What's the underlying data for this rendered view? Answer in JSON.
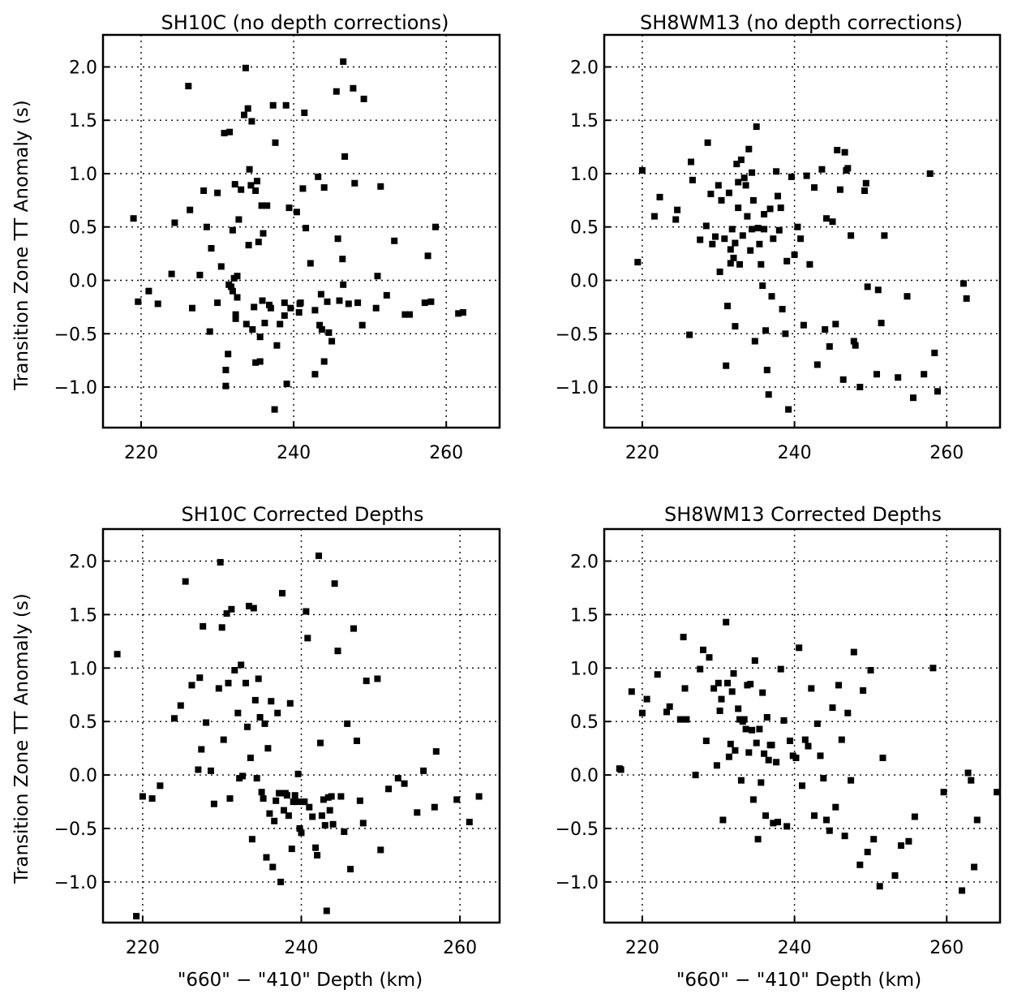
{
  "figure": {
    "ylabel": "Transition Zone TT Anomaly (s)",
    "xlabel": "\"660\" − \"410\" Depth (km)"
  },
  "chart_data": [
    {
      "type": "scatter",
      "title": "SH10C (no depth corrections)",
      "xlabel": "",
      "ylabel": "Transition Zone TT Anomaly (s)",
      "xlim": [
        215,
        267
      ],
      "ylim": [
        -1.38,
        2.3
      ],
      "xticks": [
        220,
        240,
        260
      ],
      "yticks": [
        -1.0,
        -0.5,
        0.0,
        0.5,
        1.0,
        1.5,
        2.0
      ],
      "xtick_labels": [
        "220",
        "240",
        "260"
      ],
      "ytick_labels": [
        "−1.0",
        "−0.5",
        "0.0",
        "0.5",
        "1.0",
        "1.5",
        "2.0"
      ],
      "grid": true,
      "x": [
        219.0,
        219.6,
        221.0,
        222.2,
        224.0,
        224.4,
        226.2,
        226.4,
        226.7,
        227.7,
        228.2,
        228.6,
        229.0,
        229.2,
        230.0,
        230.0,
        230.5,
        230.9,
        231.1,
        231.1,
        231.4,
        231.5,
        231.6,
        231.8,
        232.0,
        232.0,
        232.2,
        232.3,
        232.4,
        232.4,
        232.6,
        232.6,
        232.8,
        233.1,
        233.5,
        233.7,
        233.8,
        234.0,
        234.1,
        234.2,
        234.4,
        234.5,
        234.6,
        234.8,
        235.0,
        235.0,
        235.2,
        235.4,
        235.6,
        235.6,
        235.8,
        235.9,
        236.0,
        236.2,
        236.5,
        236.8,
        237.0,
        237.3,
        237.5,
        237.6,
        237.8,
        238.2,
        238.8,
        238.8,
        239.0,
        239.1,
        239.4,
        239.6,
        240.4,
        240.7,
        240.8,
        240.9,
        241.2,
        241.4,
        241.6,
        242.2,
        242.8,
        242.8,
        243.2,
        243.4,
        243.6,
        243.7,
        244.0,
        244.0,
        244.4,
        244.6,
        245.0,
        245.6,
        245.8,
        246.0,
        246.4,
        246.5,
        246.5,
        246.7,
        247.2,
        247.8,
        248.0,
        248.4,
        249.0,
        249.2,
        250.8,
        251.0,
        251.4,
        252.2,
        253.2,
        254.6,
        255.2,
        257.2,
        257.6,
        258.0,
        258.6,
        261.6,
        262.2
      ],
      "y": [
        0.58,
        -0.2,
        -0.1,
        -0.22,
        0.06,
        0.54,
        1.82,
        0.66,
        -0.26,
        0.05,
        0.84,
        0.5,
        -0.48,
        0.3,
        -0.21,
        0.82,
        0.13,
        1.38,
        -0.99,
        -0.84,
        -0.69,
        -0.04,
        1.39,
        -0.06,
        -0.1,
        0.47,
        0.02,
        0.9,
        -0.32,
        -0.36,
        0.04,
        -0.16,
        0.57,
        0.85,
        1.55,
        1.99,
        -0.41,
        1.61,
        0.33,
        1.04,
        0.89,
        1.49,
        -0.46,
        -0.25,
        0.84,
        -0.77,
        0.93,
        0.36,
        -0.53,
        -0.76,
        0.7,
        -0.19,
        0.44,
        -0.4,
        0.7,
        -0.23,
        -0.26,
        1.64,
        -1.21,
        1.29,
        -0.61,
        -0.41,
        -0.21,
        -0.33,
        1.64,
        -0.97,
        0.68,
        -0.26,
        0.64,
        -0.3,
        -0.22,
        -0.21,
        0.86,
        1.57,
        0.49,
        0.16,
        -0.28,
        -0.88,
        0.97,
        -0.42,
        -0.13,
        -0.46,
        0.87,
        -0.76,
        -0.2,
        -0.49,
        -0.57,
        1.77,
        0.39,
        -0.19,
        0.2,
        -0.04,
        2.05,
        1.16,
        -0.22,
        1.8,
        0.91,
        -0.21,
        -0.42,
        1.7,
        -0.26,
        0.04,
        0.88,
        -0.14,
        0.37,
        -0.32,
        -0.32,
        -0.21,
        0.23,
        -0.2,
        0.5,
        -0.31,
        -0.3
      ]
    },
    {
      "type": "scatter",
      "title": "SH8WM13 (no depth corrections)",
      "xlabel": "",
      "ylabel": "",
      "xlim": [
        215,
        267
      ],
      "ylim": [
        -1.38,
        2.3
      ],
      "xticks": [
        220,
        240,
        260
      ],
      "yticks": [
        -1.0,
        -0.5,
        0.0,
        0.5,
        1.0,
        1.5,
        2.0
      ],
      "xtick_labels": [
        "220",
        "240",
        "260"
      ],
      "ytick_labels": [
        "−1.0",
        "−0.5",
        "0.0",
        "0.5",
        "1.0",
        "1.5",
        "2.0"
      ],
      "grid": true,
      "x": [
        219.4,
        220.0,
        221.6,
        222.3,
        224.4,
        224.6,
        226.2,
        226.4,
        226.6,
        227.6,
        228.4,
        228.6,
        229.0,
        229.2,
        229.6,
        230.0,
        230.2,
        230.4,
        230.8,
        231.0,
        231.2,
        231.4,
        231.6,
        231.6,
        231.8,
        232.0,
        232.2,
        232.2,
        232.4,
        232.6,
        232.6,
        232.8,
        233.0,
        233.2,
        233.4,
        233.6,
        233.8,
        234.0,
        234.2,
        234.4,
        234.4,
        234.6,
        234.8,
        235.0,
        235.2,
        235.4,
        235.6,
        235.8,
        236.0,
        236.0,
        236.2,
        236.4,
        236.6,
        236.8,
        237.0,
        237.2,
        237.6,
        237.8,
        238.0,
        238.2,
        238.4,
        238.8,
        239.0,
        239.2,
        239.6,
        240.0,
        240.4,
        240.8,
        241.2,
        241.6,
        242.0,
        242.6,
        243.0,
        243.6,
        244.0,
        244.2,
        244.6,
        245.0,
        245.4,
        245.6,
        246.0,
        246.4,
        246.6,
        246.8,
        247.0,
        247.4,
        247.8,
        248.0,
        248.6,
        249.2,
        249.4,
        249.6,
        250.8,
        251.0,
        251.4,
        251.8,
        253.6,
        254.8,
        255.6,
        257.0,
        257.8,
        258.4,
        258.8,
        262.2,
        262.6
      ],
      "y": [
        0.17,
        1.03,
        0.6,
        0.78,
        0.57,
        0.66,
        -0.51,
        1.11,
        0.94,
        0.38,
        0.51,
        1.29,
        0.81,
        0.34,
        0.41,
        0.89,
        0.08,
        0.75,
        0.39,
        -0.8,
        -0.24,
        0.82,
        0.29,
        0.16,
        0.48,
        0.21,
        0.35,
        -0.43,
        1.09,
        0.92,
        0.68,
        0.15,
        1.13,
        0.42,
        0.96,
        0.89,
        0.6,
        1.23,
        0.28,
        1.01,
        0.48,
        0.75,
        -0.57,
        1.44,
        0.49,
        0.34,
        0.15,
        -0.05,
        0.62,
        0.48,
        -0.47,
        -0.84,
        -1.07,
        0.67,
        -0.15,
        0.39,
        1.02,
        0.79,
        0.47,
        0.68,
        -0.27,
        -0.5,
        0.18,
        -1.21,
        0.97,
        0.24,
        0.5,
        0.39,
        -0.42,
        0.98,
        0.15,
        0.87,
        -0.79,
        1.04,
        -0.46,
        0.58,
        -0.62,
        0.55,
        -0.41,
        1.22,
        0.85,
        -0.93,
        1.2,
        1.03,
        1.05,
        0.42,
        -0.57,
        -0.61,
        -1.0,
        0.84,
        0.91,
        -0.06,
        -0.88,
        -0.09,
        -0.4,
        0.42,
        -0.91,
        -0.15,
        -1.1,
        -0.88,
        1.0,
        -0.68,
        -1.04,
        -0.03,
        -0.17
      ]
    },
    {
      "type": "scatter",
      "title": "SH10C Corrected Depths",
      "xlabel": "\"660\" − \"410\" Depth (km)",
      "ylabel": "Transition Zone TT Anomaly (s)",
      "xlim": [
        215,
        265
      ],
      "ylim": [
        -1.38,
        2.3
      ],
      "xticks": [
        220,
        240,
        260
      ],
      "yticks": [
        -1.0,
        -0.5,
        0.0,
        0.5,
        1.0,
        1.5,
        2.0
      ],
      "xtick_labels": [
        "220",
        "240",
        "260"
      ],
      "ytick_labels": [
        "−1.0",
        "−0.5",
        "0.0",
        "0.5",
        "1.0",
        "1.5",
        "2.0"
      ],
      "grid": true,
      "x": [
        216.8,
        219.2,
        220.0,
        221.2,
        222.2,
        224.0,
        224.8,
        225.4,
        226.2,
        227.0,
        227.2,
        227.4,
        227.6,
        228.0,
        228.6,
        229.0,
        229.6,
        229.8,
        230.0,
        230.2,
        230.6,
        230.8,
        231.0,
        231.2,
        231.6,
        232.0,
        232.2,
        232.4,
        232.6,
        233.0,
        233.2,
        233.4,
        233.6,
        233.8,
        234.0,
        234.2,
        234.4,
        234.6,
        234.8,
        235.0,
        235.2,
        235.4,
        235.6,
        235.8,
        236.0,
        236.2,
        236.4,
        236.6,
        236.8,
        237.0,
        237.2,
        237.4,
        237.6,
        237.8,
        238.0,
        238.2,
        238.4,
        238.6,
        238.8,
        239.0,
        239.2,
        239.4,
        239.6,
        239.8,
        240.0,
        240.2,
        240.4,
        240.6,
        240.8,
        241.0,
        241.4,
        241.8,
        242.0,
        242.2,
        242.4,
        242.6,
        242.8,
        243.0,
        243.2,
        243.4,
        243.6,
        243.8,
        244.0,
        244.2,
        244.6,
        245.0,
        245.4,
        245.8,
        246.2,
        246.6,
        247.0,
        247.4,
        247.8,
        248.2,
        249.6,
        250.0,
        251.0,
        252.2,
        253.0,
        254.6,
        255.4,
        256.8,
        257.0,
        259.6,
        261.2,
        262.4
      ],
      "y": [
        1.13,
        -1.32,
        -0.2,
        -0.22,
        -0.1,
        0.53,
        0.65,
        1.81,
        0.84,
        0.05,
        0.91,
        0.24,
        1.39,
        0.49,
        0.04,
        -0.27,
        0.81,
        1.99,
        1.38,
        0.33,
        1.51,
        0.86,
        -0.22,
        1.55,
        0.98,
        0.58,
        -0.03,
        1.03,
        -0.01,
        0.86,
        0.45,
        1.58,
        0.16,
        -0.6,
        1.56,
        0.7,
        -0.03,
        0.9,
        0.54,
        -0.16,
        -0.22,
        0.48,
        -0.77,
        0.25,
        -0.36,
        0.69,
        -0.86,
        -0.43,
        -0.24,
        0.58,
        -0.17,
        -1.0,
        1.7,
        -0.33,
        -0.17,
        -0.19,
        -0.38,
        0.67,
        -0.69,
        -0.25,
        -0.19,
        -0.25,
        0.01,
        -0.5,
        -0.54,
        -0.25,
        -0.25,
        1.53,
        1.28,
        -0.3,
        -0.39,
        -0.68,
        -0.75,
        2.05,
        0.3,
        -0.38,
        -0.23,
        -0.47,
        -1.27,
        -0.21,
        -0.33,
        -0.2,
        -0.46,
        1.79,
        1.16,
        -0.2,
        -0.53,
        0.48,
        -0.88,
        1.37,
        0.32,
        -0.24,
        -0.45,
        0.88,
        0.9,
        -0.7,
        -0.13,
        -0.03,
        -0.08,
        -0.35,
        0.04,
        -0.3,
        0.22,
        -0.23,
        -0.44,
        -0.2
      ]
    },
    {
      "type": "scatter",
      "title": "SH8WM13 Corrected Depths",
      "xlabel": "\"660\" − \"410\" Depth (km)",
      "ylabel": "",
      "xlim": [
        215,
        267
      ],
      "ylim": [
        -1.38,
        2.3
      ],
      "xticks": [
        220,
        240,
        260
      ],
      "yticks": [
        -1.0,
        -0.5,
        0.0,
        0.5,
        1.0,
        1.5,
        2.0
      ],
      "xtick_labels": [
        "220",
        "240",
        "260"
      ],
      "ytick_labels": [
        "−1.0",
        "−0.5",
        "0.0",
        "0.5",
        "1.0",
        "1.5",
        "2.0"
      ],
      "grid": true,
      "x": [
        217.0,
        217.2,
        218.6,
        220.0,
        220.6,
        222.0,
        223.2,
        223.6,
        225.0,
        225.4,
        225.6,
        225.8,
        227.0,
        227.6,
        228.0,
        228.4,
        228.8,
        229.4,
        229.8,
        230.0,
        230.2,
        230.4,
        230.6,
        231.0,
        231.2,
        231.4,
        231.6,
        231.8,
        232.0,
        232.2,
        232.6,
        232.8,
        233.0,
        233.2,
        233.4,
        233.6,
        233.8,
        234.0,
        234.2,
        234.4,
        234.6,
        234.8,
        235.0,
        235.2,
        235.4,
        235.6,
        235.8,
        236.0,
        236.2,
        236.4,
        236.6,
        236.8,
        237.0,
        237.2,
        237.6,
        237.8,
        238.2,
        238.6,
        239.0,
        239.4,
        239.8,
        240.2,
        240.6,
        241.0,
        241.4,
        241.8,
        242.2,
        242.6,
        243.0,
        243.4,
        243.8,
        244.2,
        244.6,
        245.0,
        245.4,
        245.8,
        246.2,
        246.6,
        247.0,
        247.4,
        247.8,
        248.6,
        249.0,
        249.6,
        250.0,
        250.4,
        251.2,
        251.6,
        253.2,
        254.0,
        255.0,
        255.8,
        258.2,
        259.6,
        262.0,
        262.8,
        263.2,
        263.6,
        264.0,
        266.6
      ],
      "y": [
        0.06,
        0.05,
        0.78,
        0.58,
        0.71,
        0.94,
        0.59,
        0.64,
        0.52,
        1.29,
        0.81,
        0.52,
        0.0,
        0.99,
        1.17,
        0.32,
        1.1,
        0.81,
        0.09,
        0.86,
        0.6,
        0.71,
        -0.42,
        1.43,
        0.86,
        0.17,
        0.29,
        0.78,
        0.95,
        0.23,
        0.62,
        0.52,
        -0.05,
        0.5,
        0.52,
        0.43,
        0.84,
        0.21,
        0.85,
        0.42,
        -0.23,
        1.07,
        0.3,
        -0.6,
        0.43,
        -0.07,
        0.77,
        0.2,
        -0.38,
        0.54,
        0.14,
        0.28,
        0.28,
        -0.45,
        0.12,
        -0.44,
        0.99,
        0.51,
        -0.48,
        0.32,
        0.18,
        0.16,
        1.19,
        -0.1,
        0.33,
        0.27,
        0.81,
        -0.38,
        0.48,
        0.18,
        -0.03,
        -0.42,
        -0.52,
        0.63,
        -0.3,
        0.84,
        0.33,
        -0.57,
        0.58,
        -0.05,
        1.15,
        -0.84,
        0.79,
        -0.72,
        0.98,
        -0.6,
        -1.04,
        0.16,
        -0.94,
        -0.66,
        -0.62,
        -0.39,
        1.0,
        -0.16,
        -1.08,
        0.02,
        -0.05,
        -0.86,
        -0.42,
        -0.16
      ]
    }
  ]
}
